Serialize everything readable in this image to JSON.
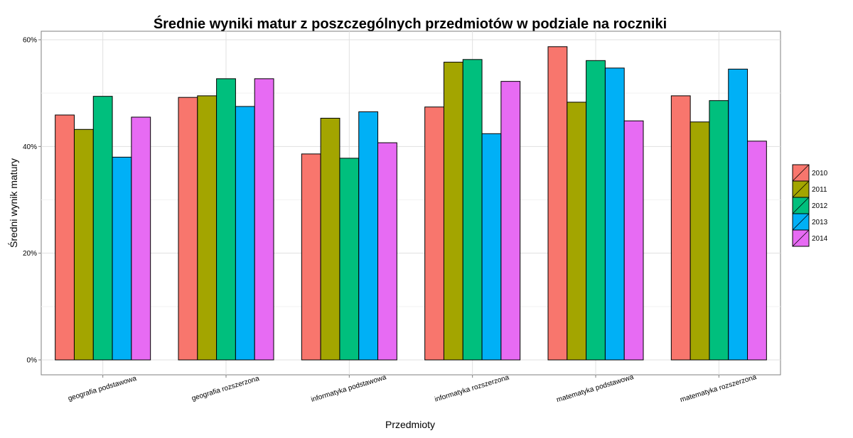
{
  "chart_data": {
    "type": "bar",
    "title": "Średnie wyniki matur z poszczególnych przedmiotów w podziale na roczniki",
    "xlabel": "Przedmioty",
    "ylabel": "Średni wynik matury",
    "ylim": [
      0,
      0.62
    ],
    "yticks": [
      0,
      0.2,
      0.4,
      0.6
    ],
    "ytick_labels": [
      "0%",
      "20%",
      "40%",
      "60%"
    ],
    "grid": true,
    "legend_position": "right",
    "categories": [
      "geografia podstawowa",
      "geografia rozszerzona",
      "informatyka podstawowa",
      "informatyka rozszerzona",
      "matematyka podstawowa",
      "matematyka rozszerzona"
    ],
    "series": [
      {
        "name": "2010",
        "color": "#F8766D",
        "values": [
          0.459,
          0.492,
          0.386,
          0.474,
          0.587,
          0.495
        ]
      },
      {
        "name": "2011",
        "color": "#A3A500",
        "values": [
          0.432,
          0.495,
          0.453,
          0.558,
          0.483,
          0.446
        ]
      },
      {
        "name": "2012",
        "color": "#00BF7D",
        "values": [
          0.494,
          0.527,
          0.378,
          0.563,
          0.561,
          0.486
        ]
      },
      {
        "name": "2013",
        "color": "#00B0F6",
        "values": [
          0.38,
          0.475,
          0.465,
          0.424,
          0.547,
          0.545
        ]
      },
      {
        "name": "2014",
        "color": "#E76BF3",
        "values": [
          0.455,
          0.527,
          0.407,
          0.522,
          0.448,
          0.41
        ]
      }
    ]
  }
}
